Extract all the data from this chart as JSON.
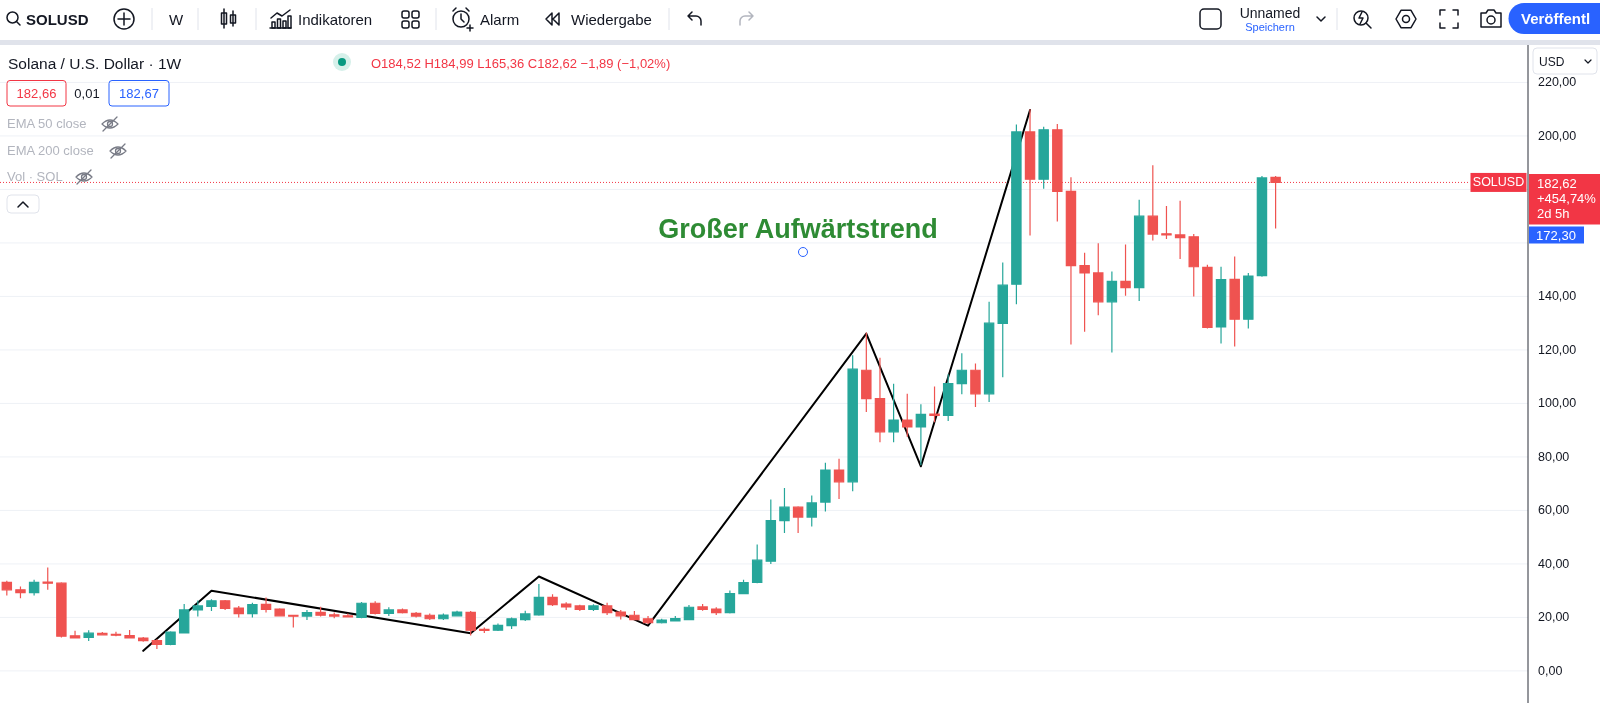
{
  "chart_data": {
    "type": "candlestick",
    "title": "Solana / U.S. Dollar · 1W",
    "categories": [
      null,
      null,
      null,
      null,
      null,
      null,
      null,
      null,
      null,
      null,
      null,
      null,
      null,
      null,
      null,
      null,
      null,
      null,
      null,
      null,
      null,
      null,
      null,
      null,
      null,
      null,
      null,
      null,
      null,
      null,
      null,
      null,
      null,
      null,
      null,
      null,
      null,
      null,
      null,
      null,
      null,
      null,
      null,
      null,
      null,
      null,
      null,
      null,
      null,
      null,
      null,
      null,
      null,
      null,
      null,
      null,
      null,
      null,
      null,
      null,
      null,
      null,
      null,
      null,
      null,
      null,
      null,
      null,
      null,
      null,
      null,
      null,
      null,
      null,
      null,
      null,
      null,
      null,
      null,
      null,
      null,
      null,
      null,
      null,
      null,
      null,
      null,
      null,
      null,
      null,
      null,
      null,
      null,
      null,
      null,
      null,
      null,
      null,
      null,
      null,
      null,
      null,
      null,
      null,
      null,
      null,
      null,
      null,
      null,
      null,
      null,
      null
    ],
    "ohlc": [
      [
        33.1,
        33.7,
        28.2,
        30.3
      ],
      [
        30.3,
        31.6,
        27.2,
        29.3
      ],
      [
        29.3,
        34.1,
        28.2,
        33.1
      ],
      [
        33.2,
        38.7,
        30.3,
        32.8
      ],
      [
        32.8,
        33.1,
        12.5,
        13.0
      ],
      [
        13.1,
        15.0,
        12.1,
        12.3
      ],
      [
        12.5,
        15.2,
        11.2,
        14.1
      ],
      [
        14.0,
        14.5,
        13.2,
        13.5
      ],
      [
        13.7,
        14.6,
        13.0,
        13.5
      ],
      [
        13.2,
        15.3,
        12.1,
        12.3
      ],
      [
        12.3,
        12.7,
        10.9,
        11.3
      ],
      [
        11.3,
        11.8,
        8.2,
        9.9
      ],
      [
        9.9,
        14.8,
        9.6,
        14.5
      ],
      [
        14.2,
        25.0,
        14.0,
        22.8
      ],
      [
        22.8,
        26.3,
        20.3,
        24.3
      ],
      [
        24.1,
        26.8,
        22.4,
        26.2
      ],
      [
        26.2,
        26.5,
        22.8,
        23.4
      ],
      [
        23.5,
        24.3,
        20.0,
        21.4
      ],
      [
        21.4,
        25.5,
        20.0,
        24.8
      ],
      [
        24.9,
        27.4,
        21.8,
        23.0
      ],
      [
        23.1,
        23.4,
        20.3,
        20.6
      ],
      [
        20.8,
        20.9,
        16.2,
        20.5
      ],
      [
        20.5,
        22.8,
        19.0,
        21.8
      ],
      [
        21.9,
        24.0,
        20.3,
        20.8
      ],
      [
        21.0,
        21.8,
        19.7,
        20.5
      ],
      [
        20.6,
        21.5,
        20.0,
        20.4
      ],
      [
        20.0,
        25.8,
        19.7,
        25.3
      ],
      [
        25.3,
        26.0,
        21.1,
        21.5
      ],
      [
        21.5,
        23.8,
        20.5,
        22.8
      ],
      [
        22.8,
        23.3,
        21.5,
        21.8
      ],
      [
        21.5,
        22.0,
        20.0,
        20.5
      ],
      [
        20.8,
        21.5,
        19.0,
        19.5
      ],
      [
        19.5,
        21.5,
        19.0,
        20.9
      ],
      [
        20.6,
        22.5,
        20.3,
        22.0
      ],
      [
        21.9,
        22.4,
        13.2,
        15.2
      ],
      [
        15.5,
        16.2,
        14.2,
        15.2
      ],
      [
        15.2,
        17.7,
        14.9,
        17.0
      ],
      [
        16.9,
        20.0,
        15.7,
        19.5
      ],
      [
        19.2,
        22.5,
        18.7,
        21.3
      ],
      [
        20.9,
        32.5,
        20.6,
        27.5
      ],
      [
        27.5,
        28.7,
        24.3,
        24.8
      ],
      [
        25.0,
        25.7,
        22.8,
        23.9
      ],
      [
        24.3,
        24.7,
        22.4,
        23.0
      ],
      [
        23.0,
        24.9,
        22.4,
        24.3
      ],
      [
        24.3,
        25.5,
        20.9,
        21.8
      ],
      [
        22.0,
        22.8,
        19.2,
        20.6
      ],
      [
        20.8,
        22.4,
        19.0,
        19.2
      ],
      [
        19.5,
        20.5,
        17.5,
        18.0
      ],
      [
        18.0,
        19.5,
        17.7,
        19.0
      ],
      [
        18.7,
        20.5,
        18.6,
        19.6
      ],
      [
        19.2,
        24.6,
        19.0,
        23.8
      ],
      [
        23.9,
        25.0,
        22.5,
        23.0
      ],
      [
        23.1,
        23.8,
        20.9,
        21.8
      ],
      [
        21.8,
        30.1,
        21.5,
        28.9
      ],
      [
        28.9,
        34.1,
        28.7,
        33.0
      ],
      [
        33.1,
        47.3,
        32.8,
        41.4
      ],
      [
        41.0,
        64.1,
        40.0,
        56.2
      ],
      [
        56.2,
        68.4,
        51.6,
        61.2
      ],
      [
        61.2,
        61.6,
        51.6,
        57.5
      ],
      [
        57.5,
        65.6,
        54.0,
        62.8
      ],
      [
        63.1,
        77.8,
        59.6,
        75.1
      ],
      [
        75.1,
        79.3,
        64.3,
        70.7
      ],
      [
        70.7,
        118.0,
        67.2,
        112.8
      ],
      [
        112.4,
        126.5,
        96.8,
        101.8
      ],
      [
        101.8,
        117.1,
        85.5,
        89.4
      ],
      [
        89.4,
        107.4,
        85.5,
        93.8
      ],
      [
        93.8,
        103.6,
        87.5,
        91.2
      ],
      [
        91.2,
        99.7,
        76.9,
        95.9
      ],
      [
        96.0,
        106.3,
        93.0,
        95.5
      ],
      [
        95.5,
        110.9,
        93.4,
        107.4
      ],
      [
        107.4,
        118.8,
        103.4,
        112.4
      ],
      [
        112.4,
        114.9,
        98.7,
        103.6
      ],
      [
        103.6,
        138.0,
        100.5,
        130.0
      ],
      [
        129.9,
        152.7,
        109.8,
        144.2
      ],
      [
        144.6,
        204.3,
        137.1,
        201.5
      ],
      [
        201.5,
        210.0,
        162.8,
        183.8
      ],
      [
        183.8,
        203.4,
        180.3,
        202.3
      ],
      [
        202.3,
        204.5,
        168.0,
        179.3
      ],
      [
        179.3,
        184.6,
        122.0,
        151.5
      ],
      [
        151.5,
        156.3,
        126.8,
        148.8
      ],
      [
        148.8,
        159.9,
        133.0,
        138.0
      ],
      [
        138.0,
        149.3,
        119.0,
        145.6
      ],
      [
        145.6,
        159.4,
        140.3,
        143.3
      ],
      [
        143.3,
        176.1,
        138.3,
        170.0
      ],
      [
        170.0,
        189.0,
        160.9,
        163.3
      ],
      [
        163.4,
        173.8,
        161.5,
        163.0
      ],
      [
        163.0,
        175.8,
        154.0,
        162.0
      ],
      [
        162.3,
        163.3,
        140.0,
        151.1
      ],
      [
        150.9,
        151.8,
        128.0,
        128.4
      ],
      [
        128.6,
        151.1,
        122.4,
        146.3
      ],
      [
        146.4,
        154.9,
        121.3,
        131.5
      ],
      [
        131.5,
        148.8,
        128.0,
        147.6
      ],
      [
        147.8,
        185.0,
        147.4,
        184.3
      ],
      [
        184.52,
        184.99,
        165.36,
        182.62
      ],
      null,
      null,
      null,
      null,
      null,
      null,
      null,
      null,
      null,
      null,
      null,
      null,
      null,
      null,
      null,
      null,
      null,
      null
    ],
    "colors": [
      "#ef5350",
      "#ef5350",
      "#26a69a",
      "#ef5350",
      "#ef5350",
      "#ef5350",
      "#26a69a",
      "#ef5350",
      "#ef5350",
      "#ef5350",
      "#ef5350",
      "#ef5350",
      "#26a69a",
      "#26a69a",
      "#26a69a",
      "#26a69a",
      "#ef5350",
      "#ef5350",
      "#26a69a",
      "#ef5350",
      "#ef5350",
      "#ef5350",
      "#26a69a",
      "#ef5350",
      "#ef5350",
      "#ef5350",
      "#26a69a",
      "#ef5350",
      "#26a69a",
      "#ef5350",
      "#ef5350",
      "#ef5350",
      "#26a69a",
      "#26a69a",
      "#ef5350",
      "#ef5350",
      "#26a69a",
      "#26a69a",
      "#26a69a",
      "#26a69a",
      "#ef5350",
      "#ef5350",
      "#ef5350",
      "#26a69a",
      "#ef5350",
      "#ef5350",
      "#ef5350",
      "#ef5350",
      "#26a69a",
      "#26a69a",
      "#26a69a",
      "#ef5350",
      "#ef5350",
      "#26a69a",
      "#26a69a",
      "#26a69a",
      "#26a69a",
      "#26a69a",
      "#ef5350",
      "#26a69a",
      "#26a69a",
      "#ef5350",
      "#26a69a",
      "#ef5350",
      "#ef5350",
      "#26a69a",
      "#ef5350",
      "#26a69a",
      "#ef5350",
      "#26a69a",
      "#26a69a",
      "#ef5350",
      "#26a69a",
      "#26a69a",
      "#26a69a",
      "#ef5350",
      "#26a69a",
      "#ef5350",
      "#ef5350",
      "#ef5350",
      "#ef5350",
      "#26a69a",
      "#ef5350",
      "#26a69a",
      "#ef5350",
      "#ef5350",
      "#ef5350",
      "#ef5350",
      "#ef5350",
      "#26a69a",
      "#ef5350",
      "#26a69a",
      "#26a69a",
      "#ef5350",
      null,
      null,
      null,
      null,
      null,
      null,
      null,
      null,
      null,
      null,
      null,
      null,
      null,
      null,
      null,
      null,
      null,
      null
    ],
    "series": [
      {
        "type": "line",
        "color": "#000000",
        "values": [
          null,
          null,
          null,
          null,
          null,
          null,
          null,
          null,
          null,
          null,
          7.5,
          null,
          null,
          null,
          null,
          30.0,
          null,
          null,
          null,
          null,
          null,
          null,
          null,
          null,
          null,
          null,
          null,
          null,
          null,
          null,
          null,
          null,
          null,
          null,
          14.1,
          null,
          null,
          null,
          null,
          35.3,
          null,
          null,
          null,
          null,
          null,
          null,
          null,
          16.9,
          null,
          null,
          null,
          null,
          null,
          null,
          null,
          null,
          null,
          null,
          null,
          null,
          null,
          null,
          null,
          126.1,
          null,
          null,
          null,
          76.5,
          null,
          null,
          null,
          null,
          null,
          null,
          null,
          209.7,
          null,
          null,
          null,
          null,
          null,
          null,
          null,
          null,
          null,
          null,
          null,
          null,
          null,
          null,
          null,
          null,
          null,
          null,
          null,
          null,
          null,
          null,
          null,
          null,
          null,
          null,
          null,
          null,
          null,
          null,
          null,
          null,
          null,
          null,
          null,
          null
        ]
      }
    ],
    "ylim": [
      -12,
      234
    ],
    "yticks": [
      {
        "value": 0,
        "label": "0,00"
      },
      {
        "value": 20,
        "label": "20,00"
      },
      {
        "value": 40,
        "label": "40,00"
      },
      {
        "value": 60,
        "label": "60,00"
      },
      {
        "value": 80,
        "label": "80,00"
      },
      {
        "value": 100,
        "label": "100,00"
      },
      {
        "value": 120,
        "label": "120,00"
      },
      {
        "value": 140,
        "label": "140,00"
      },
      {
        "value": 160,
        "label": null
      },
      {
        "value": 180,
        "label": null
      },
      {
        "value": 200,
        "label": "200,00"
      },
      {
        "value": 220,
        "label": "220,00"
      }
    ],
    "grid": "y",
    "ref_lines": [
      {
        "axis": "y",
        "value": 182.62,
        "label": "SOLUSD",
        "color": "#f23645",
        "line_style": "dotted"
      }
    ],
    "annotations": [
      "SOLUSD",
      "W",
      "Indikatoren",
      "Alarm",
      "Wiedergabe",
      "Unnamed",
      "Speichern",
      "Veröffentl",
      "O184,52 H184,99 L165,36 C182,62 −1,89 (−1,02%)",
      "182,66",
      "0,01",
      "182,67",
      "EMA 50 close",
      "EMA 200 close",
      "Vol · SOL",
      "Großer Aufwärtstrend",
      "182,62",
      "+454,74%",
      "2d 5h",
      "172,30",
      "USD"
    ]
  }
}
